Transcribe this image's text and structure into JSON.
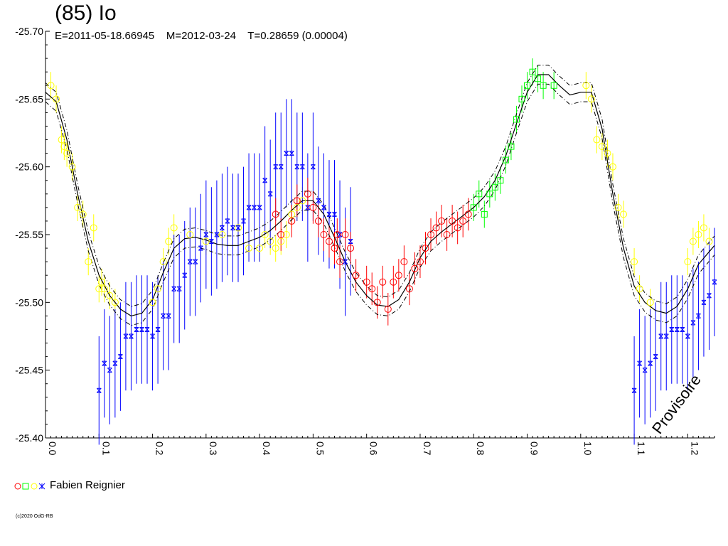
{
  "chart_data": {
    "type": "scatter",
    "title": "(85) Io",
    "subtitle": "E=2011-05-18.66945    M=2012-03-24    T=0.28659 (0.00004)",
    "xlabel": "",
    "ylabel": "",
    "xlim": [
      0.0,
      1.25
    ],
    "ylim": [
      -25.7,
      -25.4
    ],
    "y_inverted": true,
    "x_ticks": [
      "0.0",
      "0.1",
      "0.2",
      "0.3",
      "0.4",
      "0.5",
      "0.6",
      "0.7",
      "0.8",
      "0.9",
      "1.0",
      "1.1",
      "1.2"
    ],
    "y_ticks": [
      "-25.70",
      "-25.65",
      "-25.60",
      "-25.55",
      "-25.50",
      "-25.45",
      "-25.40"
    ],
    "grid": false,
    "legend_position": "bottom-left",
    "watermark": "Provisoire",
    "fit_curve": {
      "x": [
        0.0,
        0.02,
        0.04,
        0.06,
        0.08,
        0.1,
        0.12,
        0.14,
        0.16,
        0.18,
        0.2,
        0.22,
        0.24,
        0.26,
        0.28,
        0.3,
        0.32,
        0.34,
        0.36,
        0.38,
        0.4,
        0.42,
        0.44,
        0.46,
        0.48,
        0.5,
        0.52,
        0.54,
        0.56,
        0.58,
        0.6,
        0.62,
        0.64,
        0.66,
        0.68,
        0.7,
        0.72,
        0.74,
        0.76,
        0.78,
        0.8,
        0.82,
        0.84,
        0.86,
        0.88,
        0.9,
        0.92,
        0.94,
        0.96,
        0.98,
        1.0,
        1.02,
        1.04,
        1.06,
        1.08,
        1.1,
        1.12,
        1.14,
        1.16,
        1.18,
        1.2,
        1.22,
        1.25
      ],
      "y": [
        -25.655,
        -25.648,
        -25.62,
        -25.58,
        -25.545,
        -25.52,
        -25.505,
        -25.495,
        -25.49,
        -25.492,
        -25.502,
        -25.522,
        -25.54,
        -25.547,
        -25.548,
        -25.546,
        -25.543,
        -25.542,
        -25.542,
        -25.545,
        -25.548,
        -25.553,
        -25.56,
        -25.568,
        -25.575,
        -25.575,
        -25.565,
        -25.548,
        -25.53,
        -25.515,
        -25.505,
        -25.498,
        -25.497,
        -25.502,
        -25.515,
        -25.533,
        -25.545,
        -25.552,
        -25.558,
        -25.564,
        -25.57,
        -25.578,
        -25.59,
        -25.608,
        -25.632,
        -25.655,
        -25.668,
        -25.668,
        -25.66,
        -25.653,
        -25.655,
        -25.655,
        -25.628,
        -25.58,
        -25.54,
        -25.512,
        -25.5,
        -25.494,
        -25.492,
        -25.497,
        -25.51,
        -25.528,
        -25.542
      ],
      "band_offset": 0.007
    },
    "series": [
      {
        "name": "Fabien Reignier",
        "color": "#ffff00",
        "marker": "circle",
        "x": [
          0.01,
          0.02,
          0.03,
          0.035,
          0.04,
          0.05,
          0.06,
          0.07,
          0.08,
          0.09,
          0.1,
          0.105,
          0.11,
          0.12,
          0.13,
          0.2,
          0.21,
          0.22,
          0.23,
          0.24,
          0.27,
          0.3,
          0.33,
          0.36,
          0.38,
          0.4,
          0.41,
          0.42,
          0.43,
          0.44,
          0.45,
          0.46,
          0.47,
          0.48,
          1.01,
          1.02,
          1.03,
          1.04,
          1.05,
          1.06,
          1.07,
          1.08,
          1.1,
          1.11,
          1.13,
          1.2,
          1.21,
          1.22,
          1.23,
          1.24
        ],
        "y": [
          -25.66,
          -25.65,
          -25.62,
          -25.615,
          -25.61,
          -25.6,
          -25.57,
          -25.565,
          -25.53,
          -25.555,
          -25.51,
          -25.515,
          -25.51,
          -25.505,
          -25.5,
          -25.5,
          -25.51,
          -25.53,
          -25.545,
          -25.555,
          -25.55,
          -25.545,
          -25.55,
          -25.555,
          -25.54,
          -25.54,
          -25.55,
          -25.545,
          -25.54,
          -25.545,
          -25.55,
          -25.565,
          -25.57,
          -25.575,
          -25.66,
          -25.65,
          -25.62,
          -25.615,
          -25.61,
          -25.6,
          -25.57,
          -25.565,
          -25.53,
          -25.51,
          -25.5,
          -25.53,
          -25.545,
          -25.55,
          -25.555,
          -25.545
        ],
        "err": 0.01
      },
      {
        "name": "Fabien Reignier",
        "color": "#0000ff",
        "marker": "star",
        "x": [
          0.1,
          0.11,
          0.12,
          0.13,
          0.14,
          0.15,
          0.16,
          0.17,
          0.18,
          0.19,
          0.2,
          0.21,
          0.22,
          0.23,
          0.24,
          0.25,
          0.26,
          0.27,
          0.28,
          0.29,
          0.3,
          0.31,
          0.32,
          0.33,
          0.34,
          0.35,
          0.36,
          0.37,
          0.38,
          0.39,
          0.4,
          0.41,
          0.42,
          0.43,
          0.44,
          0.45,
          0.46,
          0.47,
          0.48,
          0.49,
          0.5,
          0.51,
          0.52,
          0.53,
          0.54,
          0.55,
          0.56,
          0.57,
          1.1,
          1.11,
          1.12,
          1.13,
          1.14,
          1.15,
          1.16,
          1.17,
          1.18,
          1.19,
          1.2,
          1.21,
          1.22,
          1.23,
          1.24,
          1.25
        ],
        "y": [
          -25.435,
          -25.455,
          -25.45,
          -25.455,
          -25.46,
          -25.475,
          -25.475,
          -25.48,
          -25.48,
          -25.48,
          -25.475,
          -25.48,
          -25.49,
          -25.49,
          -25.51,
          -25.51,
          -25.52,
          -25.53,
          -25.53,
          -25.54,
          -25.55,
          -25.545,
          -25.55,
          -25.555,
          -25.56,
          -25.555,
          -25.555,
          -25.56,
          -25.57,
          -25.57,
          -25.57,
          -25.59,
          -25.58,
          -25.6,
          -25.6,
          -25.61,
          -25.61,
          -25.6,
          -25.6,
          -25.57,
          -25.6,
          -25.575,
          -25.57,
          -25.565,
          -25.565,
          -25.55,
          -25.53,
          -25.545,
          -25.435,
          -25.455,
          -25.45,
          -25.455,
          -25.46,
          -25.475,
          -25.475,
          -25.48,
          -25.48,
          -25.48,
          -25.475,
          -25.485,
          -25.49,
          -25.5,
          -25.505,
          -25.515
        ],
        "err": 0.04
      },
      {
        "name": "Fabien Reignier",
        "color": "#ff0000",
        "marker": "circle",
        "x": [
          0.43,
          0.44,
          0.46,
          0.47,
          0.49,
          0.5,
          0.51,
          0.52,
          0.53,
          0.54,
          0.545,
          0.55,
          0.56,
          0.57,
          0.58,
          0.6,
          0.61,
          0.62,
          0.63,
          0.64,
          0.65,
          0.66,
          0.67,
          0.68,
          0.69,
          0.7,
          0.71,
          0.72,
          0.73,
          0.74,
          0.75,
          0.76,
          0.77,
          0.78,
          0.79
        ],
        "y": [
          -25.565,
          -25.55,
          -25.56,
          -25.575,
          -25.58,
          -25.57,
          -25.56,
          -25.55,
          -25.545,
          -25.54,
          -25.55,
          -25.53,
          -25.55,
          -25.54,
          -25.52,
          -25.515,
          -25.51,
          -25.5,
          -25.515,
          -25.495,
          -25.515,
          -25.52,
          -25.53,
          -25.51,
          -25.525,
          -25.53,
          -25.54,
          -25.55,
          -25.555,
          -25.56,
          -25.55,
          -25.56,
          -25.555,
          -25.56,
          -25.565
        ],
        "err": 0.012
      },
      {
        "name": "Fabien Reignier",
        "color": "#00ff00",
        "marker": "square",
        "x": [
          0.8,
          0.81,
          0.82,
          0.83,
          0.84,
          0.85,
          0.86,
          0.87,
          0.88,
          0.89,
          0.9,
          0.91,
          0.92,
          0.93,
          0.95
        ],
        "y": [
          -25.57,
          -25.58,
          -25.565,
          -25.58,
          -25.585,
          -25.59,
          -25.605,
          -25.615,
          -25.635,
          -25.65,
          -25.66,
          -25.67,
          -25.665,
          -25.66,
          -25.66
        ],
        "err": 0.01
      }
    ]
  },
  "legend": {
    "label": "Fabien Reignier",
    "symbols": [
      "red-circle",
      "green-square",
      "yellow-circle",
      "blue-star"
    ]
  },
  "copyright": "(c)2020 OdG-RB"
}
